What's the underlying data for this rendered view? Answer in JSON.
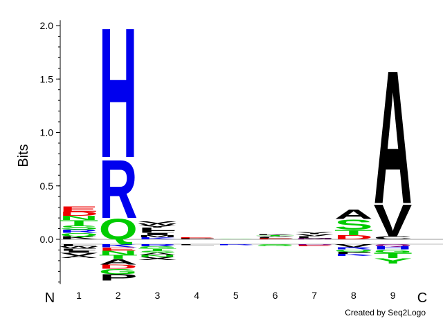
{
  "chart_data": {
    "type": "sequence-logo",
    "ylabel": "Bits",
    "ylim": [
      -0.42,
      2.05
    ],
    "yticks": [
      "2.0",
      "1.5",
      "1.0",
      "0.5",
      "0.0"
    ],
    "ytick_values": [
      2.0,
      1.5,
      1.0,
      0.5,
      0.0
    ],
    "positions": [
      "1",
      "2",
      "3",
      "4",
      "5",
      "6",
      "7",
      "8",
      "9"
    ],
    "n_label": "N",
    "c_label": "C",
    "credit": "Created by Seq2Logo",
    "colors": {
      "blue": "#0000ee",
      "green": "#00cc00",
      "red": "#ee0000",
      "purple": "#800080",
      "black": "#000000"
    },
    "columns": [
      {
        "position": "1",
        "positive": [
          {
            "letter": "K",
            "color": "black",
            "bits": 0.03
          },
          {
            "letter": "Q",
            "color": "green",
            "bits": 0.03
          },
          {
            "letter": "R",
            "color": "blue",
            "bits": 0.03
          },
          {
            "letter": "S",
            "color": "green",
            "bits": 0.04
          },
          {
            "letter": "T",
            "color": "green",
            "bits": 0.05
          },
          {
            "letter": "N",
            "color": "green",
            "bits": 0.04
          },
          {
            "letter": "D",
            "color": "red",
            "bits": 0.04
          },
          {
            "letter": "E",
            "color": "red",
            "bits": 0.05
          }
        ],
        "negative": [
          {
            "letter": "L",
            "color": "black",
            "bits": 0.02
          },
          {
            "letter": "W",
            "color": "black",
            "bits": 0.02
          },
          {
            "letter": "F",
            "color": "black",
            "bits": 0.02
          },
          {
            "letter": "I",
            "color": "black",
            "bits": 0.02
          },
          {
            "letter": "V",
            "color": "black",
            "bits": 0.03
          },
          {
            "letter": "A",
            "color": "black",
            "bits": 0.02
          }
        ]
      },
      {
        "position": "2",
        "positive": [
          {
            "letter": "Q",
            "color": "green",
            "bits": 0.2
          },
          {
            "letter": "R",
            "color": "blue",
            "bits": 0.57
          },
          {
            "letter": "H",
            "color": "blue",
            "bits": 1.27
          }
        ],
        "negative": [
          {
            "letter": "K",
            "color": "blue",
            "bits": 0.03
          },
          {
            "letter": "E",
            "color": "red",
            "bits": 0.03
          },
          {
            "letter": "N",
            "color": "green",
            "bits": 0.04
          },
          {
            "letter": "T",
            "color": "green",
            "bits": 0.04
          },
          {
            "letter": "A",
            "color": "black",
            "bits": 0.05
          },
          {
            "letter": "D",
            "color": "red",
            "bits": 0.04
          },
          {
            "letter": "G",
            "color": "green",
            "bits": 0.05
          },
          {
            "letter": "P",
            "color": "black",
            "bits": 0.06
          }
        ]
      },
      {
        "position": "3",
        "positive": [
          {
            "letter": "K",
            "color": "blue",
            "bits": 0.02
          },
          {
            "letter": "M",
            "color": "black",
            "bits": 0.02
          },
          {
            "letter": "I",
            "color": "black",
            "bits": 0.02
          },
          {
            "letter": "F",
            "color": "black",
            "bits": 0.02
          },
          {
            "letter": "L",
            "color": "black",
            "bits": 0.03
          },
          {
            "letter": "Y",
            "color": "black",
            "bits": 0.02
          },
          {
            "letter": "W",
            "color": "black",
            "bits": 0.02
          },
          {
            "letter": "V",
            "color": "black",
            "bits": 0.02
          }
        ],
        "negative": [
          {
            "letter": "R",
            "color": "blue",
            "bits": 0.02
          },
          {
            "letter": "G",
            "color": "green",
            "bits": 0.02
          },
          {
            "letter": "T",
            "color": "green",
            "bits": 0.02
          },
          {
            "letter": "S",
            "color": "green",
            "bits": 0.02
          },
          {
            "letter": "A",
            "color": "black",
            "bits": 0.02
          },
          {
            "letter": "N",
            "color": "green",
            "bits": 0.02
          },
          {
            "letter": "X",
            "color": "black",
            "bits": 0.03
          }
        ]
      },
      {
        "position": "4",
        "positive": [
          {
            "letter": "P",
            "color": "black",
            "bits": 0.01
          },
          {
            "letter": "E",
            "color": "red",
            "bits": 0.01
          }
        ],
        "negative": [
          {
            "letter": "L",
            "color": "black",
            "bits": 0.01
          }
        ]
      },
      {
        "position": "5",
        "positive": [
          {
            "letter": "S",
            "color": "green",
            "bits": 0.005
          }
        ],
        "negative": [
          {
            "letter": "R",
            "color": "blue",
            "bits": 0.01
          }
        ]
      },
      {
        "position": "6",
        "positive": [
          {
            "letter": "E",
            "color": "red",
            "bits": 0.01
          },
          {
            "letter": "L",
            "color": "black",
            "bits": 0.01
          },
          {
            "letter": "V",
            "color": "black",
            "bits": 0.01
          },
          {
            "letter": "T",
            "color": "green",
            "bits": 0.01
          },
          {
            "letter": "K",
            "color": "black",
            "bits": 0.01
          }
        ],
        "negative": [
          {
            "letter": "S",
            "color": "green",
            "bits": 0.01
          },
          {
            "letter": "G",
            "color": "green",
            "bits": 0.01
          }
        ]
      },
      {
        "position": "7",
        "positive": [
          {
            "letter": "M",
            "color": "purple",
            "bits": 0.01
          },
          {
            "letter": "L",
            "color": "black",
            "bits": 0.02
          },
          {
            "letter": "V",
            "color": "black",
            "bits": 0.02
          },
          {
            "letter": "Y",
            "color": "black",
            "bits": 0.02
          }
        ],
        "negative": [
          {
            "letter": "D",
            "color": "purple",
            "bits": 0.01
          },
          {
            "letter": "E",
            "color": "red",
            "bits": 0.01
          }
        ]
      },
      {
        "position": "8",
        "positive": [
          {
            "letter": "D",
            "color": "red",
            "bits": 0.04
          },
          {
            "letter": "T",
            "color": "green",
            "bits": 0.05
          },
          {
            "letter": "S",
            "color": "green",
            "bits": 0.1
          },
          {
            "letter": "A",
            "color": "black",
            "bits": 0.09
          }
        ],
        "negative": [
          {
            "letter": "V",
            "color": "black",
            "bits": 0.03
          },
          {
            "letter": "R",
            "color": "blue",
            "bits": 0.02
          },
          {
            "letter": "Q",
            "color": "green",
            "bits": 0.02
          },
          {
            "letter": "F",
            "color": "black",
            "bits": 0.02
          },
          {
            "letter": "K",
            "color": "blue",
            "bits": 0.02
          }
        ]
      },
      {
        "position": "9",
        "positive": [
          {
            "letter": "C",
            "color": "black",
            "bits": 0.03
          },
          {
            "letter": "V",
            "color": "black",
            "bits": 0.31
          },
          {
            "letter": "A",
            "color": "black",
            "bits": 1.3
          }
        ],
        "negative": [
          {
            "letter": "Q",
            "color": "purple",
            "bits": 0.02
          },
          {
            "letter": "H",
            "color": "blue",
            "bits": 0.03
          },
          {
            "letter": "G",
            "color": "green",
            "bits": 0.03
          },
          {
            "letter": "T",
            "color": "green",
            "bits": 0.05
          },
          {
            "letter": "Y",
            "color": "green",
            "bits": 0.05
          }
        ]
      }
    ]
  }
}
